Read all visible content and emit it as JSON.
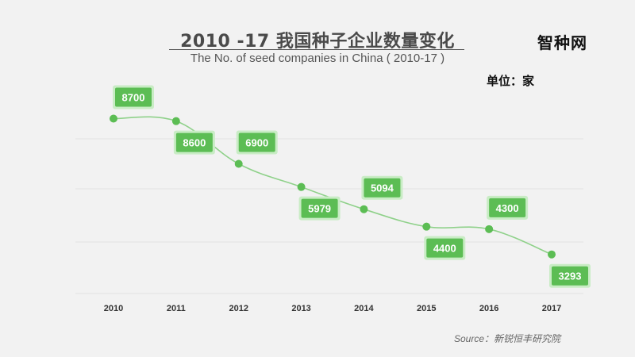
{
  "chart_data": {
    "type": "line",
    "title": "2010 -17 我国种子企业数量变化",
    "subtitle": "The No. of seed companies in China ( 2010-17 )",
    "unit": "单位：家",
    "categories": [
      "2010",
      "2011",
      "2012",
      "2013",
      "2014",
      "2015",
      "2016",
      "2017"
    ],
    "series": [
      {
        "values": [
          8700,
          8600,
          6900,
          5979,
          5094,
          4400,
          4300,
          3293
        ],
        "data_labels": [
          "8700",
          "8600",
          "6900",
          "5979",
          "5094",
          "4400",
          "4300",
          "3293"
        ]
      }
    ],
    "label_positions": [
      "above",
      "below",
      "above",
      "below",
      "above",
      "below",
      "above",
      "below"
    ],
    "ylim": [
      3000,
      9000
    ],
    "grid": true,
    "source": "Source：新锐恒丰研究院",
    "colors": {
      "line": "#8fd18a",
      "marker": "#5cbd54",
      "label_bg": "#5cbd54",
      "label_border": "#c9ecc5"
    }
  },
  "brand": "智种网"
}
